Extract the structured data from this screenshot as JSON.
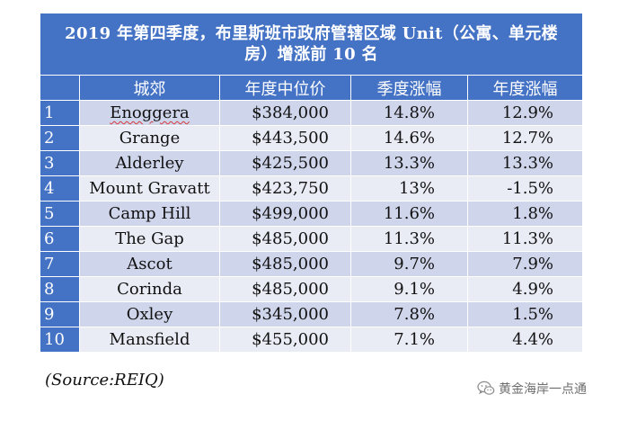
{
  "table": {
    "title": "2019 年第四季度，布里斯班市政府管辖区域 Unit（公寓、单元楼房）增涨前 10 名",
    "headers": [
      "城郊",
      "年度中位价",
      "季度涨幅",
      "年度涨幅"
    ],
    "rows": [
      {
        "rank": "1",
        "suburb": "Enoggera",
        "median": "$384,000",
        "quarterly": "14.8%",
        "annual": "12.9%"
      },
      {
        "rank": "2",
        "suburb": "Grange",
        "median": "$443,500",
        "quarterly": "14.6%",
        "annual": "12.7%"
      },
      {
        "rank": "3",
        "suburb": "Alderley",
        "median": "$425,500",
        "quarterly": "13.3%",
        "annual": "13.3%"
      },
      {
        "rank": "4",
        "suburb": "Mount Gravatt",
        "median": "$423,750",
        "quarterly": "13%",
        "annual": "-1.5%"
      },
      {
        "rank": "5",
        "suburb": "Camp Hill",
        "median": "$499,000",
        "quarterly": "11.6%",
        "annual": "1.8%"
      },
      {
        "rank": "6",
        "suburb": "The Gap",
        "median": "$485,000",
        "quarterly": "11.3%",
        "annual": "11.3%"
      },
      {
        "rank": "7",
        "suburb": "Ascot",
        "median": "$485,000",
        "quarterly": "9.7%",
        "annual": "7.9%"
      },
      {
        "rank": "8",
        "suburb": "Corinda",
        "median": "$485,000",
        "quarterly": "9.1%",
        "annual": "4.9%"
      },
      {
        "rank": "9",
        "suburb": "Oxley",
        "median": "$345,000",
        "quarterly": "7.8%",
        "annual": "1.5%"
      },
      {
        "rank": "10",
        "suburb": "Mansfield",
        "median": "$455,000",
        "quarterly": "7.1%",
        "annual": "4.4%"
      }
    ]
  },
  "source": "(Source:REIQ)",
  "watermark": {
    "icon": "wechat-icon",
    "text": "黄金海岸一点通"
  },
  "colors": {
    "header": "#4472c4",
    "row_odd": "#cfd5ea",
    "row_even": "#e9ebf5"
  }
}
